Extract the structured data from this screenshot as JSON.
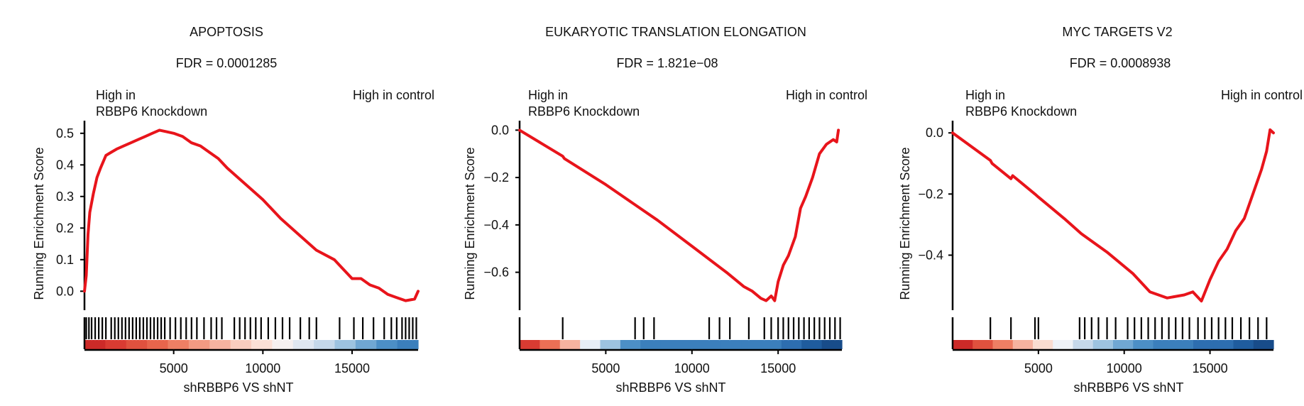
{
  "figure": {
    "high_in_left_line1": "High in",
    "high_in_left_line2": "RBBP6 Knockdown",
    "high_in_right": "High in control",
    "ylabel": "Running Enrichment Score",
    "xlabel": "shRBBP6 VS shNT",
    "curve_color": "#e8141b"
  },
  "chart_data": [
    {
      "type": "line",
      "title": "APOPTOSIS",
      "subtitle": "FDR = 0.0001285",
      "xlabel": "shRBBP6 VS shNT",
      "ylabel": "Running Enrichment Score",
      "xlim": [
        0,
        18700
      ],
      "ylim": [
        -0.06,
        0.54
      ],
      "xticks": [
        5000,
        10000,
        15000
      ],
      "yticks": [
        0.0,
        0.1,
        0.2,
        0.3,
        0.4,
        0.5
      ],
      "ytick_labels": [
        "0.0",
        "0.1",
        "0.2",
        "0.3",
        "0.4",
        "0.5"
      ],
      "series": [
        {
          "x": [
            0,
            100,
            200,
            300,
            500,
            700,
            900,
            1200,
            1500,
            1800,
            2200,
            2600,
            3000,
            3400,
            3800,
            4200,
            4600,
            5000,
            5500,
            6000,
            6500,
            7000,
            7500,
            8000,
            9000,
            10000,
            11000,
            12000,
            13000,
            14000,
            14500,
            15000,
            15500,
            16000,
            16500,
            17000,
            17500,
            18000,
            18500,
            18700
          ],
          "y": [
            0.0,
            0.05,
            0.18,
            0.25,
            0.31,
            0.36,
            0.39,
            0.43,
            0.44,
            0.45,
            0.46,
            0.47,
            0.48,
            0.49,
            0.5,
            0.51,
            0.505,
            0.5,
            0.49,
            0.47,
            0.46,
            0.44,
            0.42,
            0.39,
            0.34,
            0.29,
            0.23,
            0.18,
            0.13,
            0.1,
            0.07,
            0.04,
            0.04,
            0.02,
            0.01,
            -0.01,
            -0.02,
            -0.03,
            -0.025,
            0.0
          ]
        }
      ],
      "hits": [
        100,
        250,
        400,
        600,
        800,
        1000,
        1200,
        1500,
        1700,
        1900,
        2100,
        2300,
        2500,
        2700,
        2900,
        3100,
        3300,
        3500,
        3700,
        3900,
        4100,
        4300,
        4500,
        4800,
        5100,
        5400,
        5700,
        6000,
        6300,
        6700,
        7100,
        7400,
        7700,
        8400,
        8700,
        9000,
        9300,
        9600,
        9900,
        10300,
        10700,
        11100,
        11500,
        12100,
        12600,
        13000,
        14300,
        15100,
        15600,
        16200,
        16800,
        17200,
        17500,
        17800,
        18000,
        18200,
        18400,
        18600
      ],
      "ranking_colors": [
        "#cc2a28",
        "#d93b32",
        "#e0513e",
        "#e8654c",
        "#ee7f64",
        "#f39a82",
        "#f6b3a0",
        "#f9cdbf",
        "#fbe0d6",
        "#f5f0f0",
        "#dfe7f1",
        "#c5d8ea",
        "#9dc3e0",
        "#70a7d3",
        "#4c8fc6",
        "#3b7fbc"
      ]
    },
    {
      "type": "line",
      "title": "EUKARYOTIC TRANSLATION ELONGATION",
      "subtitle": "FDR = 1.821e−08",
      "xlabel": "shRBBP6 VS shNT",
      "ylabel": "Running Enrichment Score",
      "xlim": [
        0,
        18700
      ],
      "ylim": [
        -0.76,
        0.04
      ],
      "xticks": [
        5000,
        10000,
        15000
      ],
      "yticks": [
        0.0,
        -0.2,
        -0.4,
        -0.6
      ],
      "ytick_labels": [
        "0.0",
        "−0.2",
        "−0.4",
        "−0.6"
      ],
      "series": [
        {
          "x": [
            0,
            2500,
            2600,
            5000,
            7000,
            8000,
            10000,
            12000,
            13000,
            13500,
            14000,
            14300,
            14600,
            14800,
            15000,
            15300,
            15600,
            16000,
            16300,
            16600,
            17000,
            17400,
            17800,
            18200,
            18400,
            18500
          ],
          "y": [
            0.0,
            -0.11,
            -0.12,
            -0.23,
            -0.33,
            -0.38,
            -0.49,
            -0.6,
            -0.66,
            -0.68,
            -0.71,
            -0.72,
            -0.7,
            -0.72,
            -0.64,
            -0.57,
            -0.53,
            -0.45,
            -0.33,
            -0.28,
            -0.2,
            -0.1,
            -0.06,
            -0.04,
            -0.05,
            0.0
          ]
        }
      ],
      "hits": [
        2500,
        6700,
        7200,
        7800,
        11000,
        11600,
        12200,
        13300,
        14200,
        14600,
        15000,
        15300,
        15600,
        15900,
        16200,
        16500,
        16800,
        17100,
        17400,
        17700,
        18000,
        18300,
        18600
      ],
      "ranking_colors": [
        "#d93b32",
        "#ec6f55",
        "#f6b3a0",
        "#e6eef6",
        "#9dc3e0",
        "#4c8fc6",
        "#3b7fbc",
        "#3b7fbc",
        "#3b7fbc",
        "#3b7fbc",
        "#3b7fbc",
        "#3b7fbc",
        "#3b7fbc",
        "#2d6eb0",
        "#1f5c9e",
        "#184c8a"
      ]
    },
    {
      "type": "line",
      "title": "MYC TARGETS V2",
      "subtitle": "FDR = 0.0008938",
      "xlabel": "shRBBP6 VS shNT",
      "ylabel": "Running Enrichment Score",
      "xlim": [
        0,
        18700
      ],
      "ylim": [
        -0.58,
        0.04
      ],
      "xticks": [
        5000,
        10000,
        15000
      ],
      "yticks": [
        0.0,
        -0.2,
        -0.4
      ],
      "ytick_labels": [
        "0.0",
        "−0.2",
        "−0.4"
      ],
      "series": [
        {
          "x": [
            0,
            2200,
            2300,
            3400,
            3500,
            4800,
            5000,
            6500,
            7500,
            9000,
            10500,
            11500,
            12500,
            13500,
            14000,
            14500,
            15000,
            15500,
            16000,
            16500,
            17000,
            17500,
            18000,
            18300,
            18500,
            18700
          ],
          "y": [
            0.0,
            -0.09,
            -0.1,
            -0.15,
            -0.14,
            -0.2,
            -0.21,
            -0.28,
            -0.33,
            -0.39,
            -0.46,
            -0.52,
            -0.54,
            -0.53,
            -0.52,
            -0.55,
            -0.48,
            -0.42,
            -0.38,
            -0.32,
            -0.28,
            -0.2,
            -0.12,
            -0.06,
            0.01,
            0.0
          ]
        }
      ],
      "hits": [
        2200,
        3400,
        4800,
        5000,
        7400,
        7700,
        8100,
        8500,
        9000,
        9500,
        10200,
        10600,
        11000,
        11400,
        11800,
        12200,
        12600,
        13000,
        13400,
        13800,
        14300,
        14700,
        15100,
        15500,
        15900,
        16300,
        16800,
        17300,
        17800,
        18300
      ],
      "ranking_colors": [
        "#cc2a28",
        "#e0513e",
        "#ee7f64",
        "#f6b3a0",
        "#f9dcd0",
        "#eef2f7",
        "#c5d8ea",
        "#9dc3e0",
        "#70a7d3",
        "#4c8fc6",
        "#3b7fbc",
        "#3b7fbc",
        "#2d6eb0",
        "#2d6eb0",
        "#1f5c9e",
        "#184c8a"
      ]
    }
  ]
}
